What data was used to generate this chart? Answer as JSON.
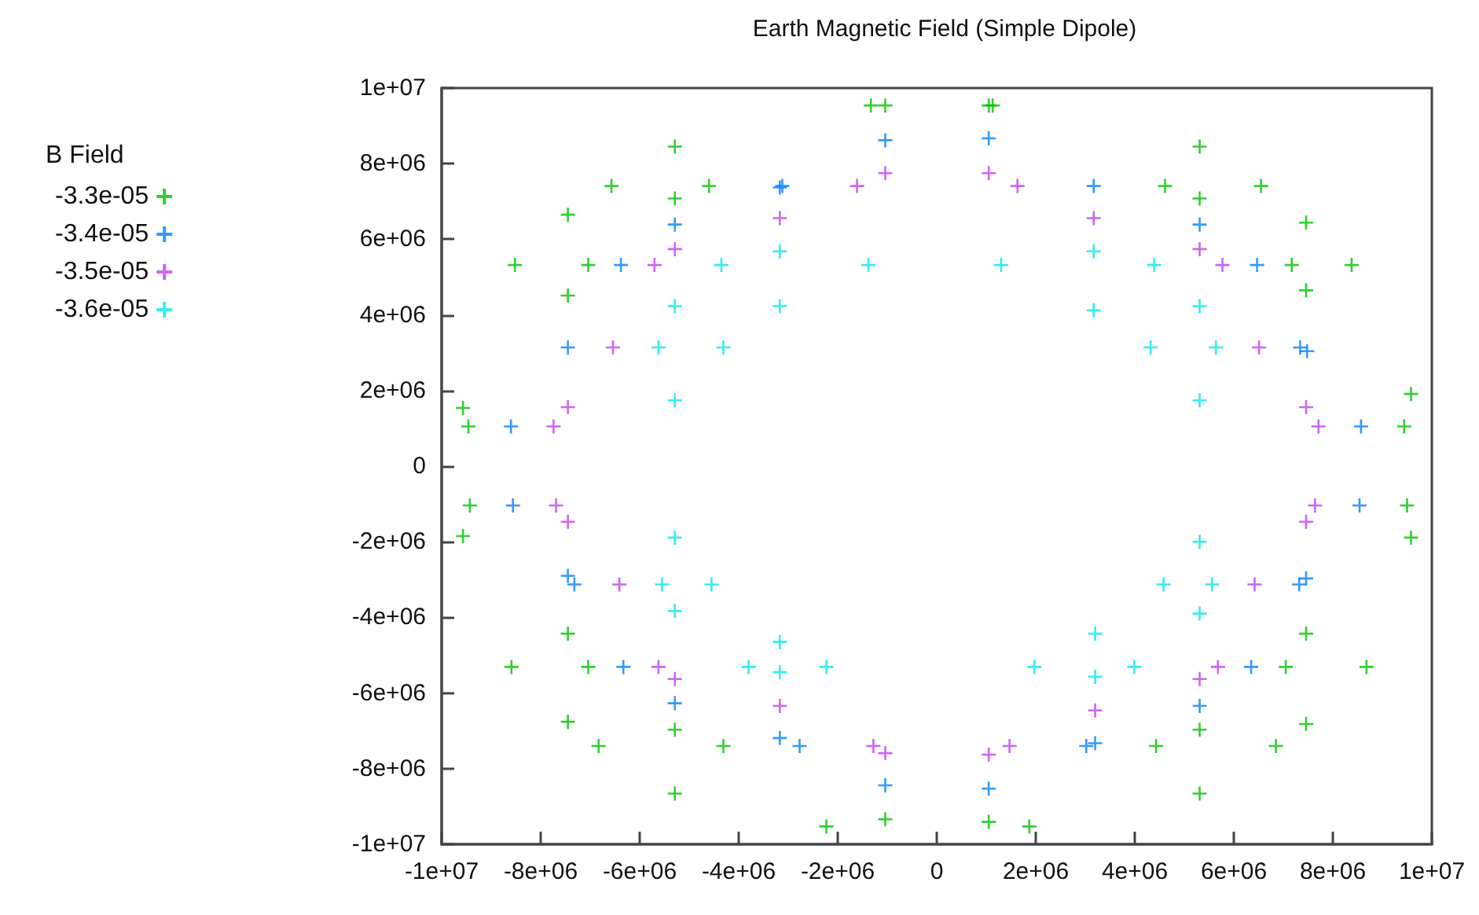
{
  "chart_data": {
    "type": "scatter",
    "title": "Earth Magnetic Field (Simple Dipole)",
    "legend_title": "B Field",
    "legend": "left",
    "marker": "cross",
    "xlim": [
      -10000000.0,
      10000000.0
    ],
    "ylim": [
      -10000000.0,
      10000000.0
    ],
    "xticks": [
      {
        "value": -10000000.0,
        "label": "-1e+07"
      },
      {
        "value": -8000000.0,
        "label": "-8e+06"
      },
      {
        "value": -6000000.0,
        "label": "-6e+06"
      },
      {
        "value": -4000000.0,
        "label": "-4e+06"
      },
      {
        "value": -2000000.0,
        "label": "-2e+06"
      },
      0,
      {
        "value": 2000000.0,
        "label": "2e+06"
      },
      {
        "value": 4000000.0,
        "label": "4e+06"
      },
      {
        "value": 6000000.0,
        "label": "6e+06"
      },
      {
        "value": 8000000.0,
        "label": "8e+06"
      },
      {
        "value": 10000000.0,
        "label": "1e+07"
      }
    ],
    "yticks": [
      {
        "value": -10000000.0,
        "label": "-1e+07"
      },
      {
        "value": -8000000.0,
        "label": "-8e+06"
      },
      {
        "value": -6000000.0,
        "label": "-6e+06"
      },
      {
        "value": -4000000.0,
        "label": "-4e+06"
      },
      {
        "value": -2000000.0,
        "label": "-2e+06"
      },
      0,
      {
        "value": 2000000.0,
        "label": "2e+06"
      },
      {
        "value": 4000000.0,
        "label": "4e+06"
      },
      {
        "value": 6000000.0,
        "label": "6e+06"
      },
      {
        "value": 8000000.0,
        "label": "8e+06"
      },
      {
        "value": 10000000.0,
        "label": "1e+07"
      }
    ],
    "series": [
      {
        "name": "-3.3e-05",
        "color": "#00c000",
        "x": [
          -1330000.0,
          -1040000.0,
          -5290000.0,
          -6570000.0,
          -4600000.0,
          -5290000.0,
          -7450000.0,
          -8520000.0,
          -7040000.0,
          -7450000.0,
          -9570000.0,
          -9460000.0,
          1050000.0,
          1130000.0,
          5310000.0,
          4610000.0,
          6550000.0,
          5310000.0,
          7460000.0,
          7170000.0,
          8380000.0,
          7460000.0,
          9580000.0,
          9440000.0,
          -9430000.0,
          -9570000.0,
          -7450000.0,
          -8590000.0,
          -7040000.0,
          -7450000.0,
          -6830000.0,
          -5290000.0,
          -4310000.0,
          -5290000.0,
          -2230000.0,
          -1040000.0,
          1050000.0,
          1870000.0,
          4430000.0,
          5310000.0,
          6850000.0,
          7460000.0,
          5310000.0,
          7050000.0,
          7460000.0,
          8680000.0,
          9500000.0,
          9580000.0
        ],
        "values": [
          9540000.0,
          9540000.0,
          8450000.0,
          7410000.0,
          7410000.0,
          7080000.0,
          6650000.0,
          5320000.0,
          5320000.0,
          4510000.0,
          1540000.0,
          1050000.0,
          9540000.0,
          9540000.0,
          8450000.0,
          7410000.0,
          7410000.0,
          7080000.0,
          6440000.0,
          5320000.0,
          5320000.0,
          4650000.0,
          1910000.0,
          1050000.0,
          -1040000.0,
          -1850000.0,
          -4430000.0,
          -5310000.0,
          -5310000.0,
          -6760000.0,
          -7400000.0,
          -6970000.0,
          -7400000.0,
          -8660000.0,
          -9530000.0,
          -9340000.0,
          -9410000.0,
          -9530000.0,
          -7400000.0,
          -6970000.0,
          -7400000.0,
          -6820000.0,
          -8660000.0,
          -5310000.0,
          -4430000.0,
          -5310000.0,
          -1040000.0,
          -1890000.0
        ]
      },
      {
        "name": "-3.4e-05",
        "color": "#0080ff",
        "x": [
          -1040000.0,
          -3170000.0,
          -3120000.0,
          -5290000.0,
          -6380000.0,
          -7450000.0,
          -8600000.0,
          1050000.0,
          3170000.0,
          5310000.0,
          6470000.0,
          7340000.0,
          7480000.0,
          8570000.0,
          -8560000.0,
          -7450000.0,
          -7320000.0,
          -6330000.0,
          -5290000.0,
          -3170000.0,
          -2770000.0,
          -1040000.0,
          1050000.0,
          3020000.0,
          3200000.0,
          5310000.0,
          6350000.0,
          7320000.0,
          7460000.0,
          8540000.0
        ],
        "values": [
          8620000.0,
          7370000.0,
          7410000.0,
          6390000.0,
          5320000.0,
          3140000.0,
          1050000.0,
          8670000.0,
          7410000.0,
          6390000.0,
          5320000.0,
          3140000.0,
          3040000.0,
          1050000.0,
          -1040000.0,
          -2900000.0,
          -3130000.0,
          -5310000.0,
          -6270000.0,
          -7190000.0,
          -7400000.0,
          -8440000.0,
          -8530000.0,
          -7400000.0,
          -7330000.0,
          -6340000.0,
          -5310000.0,
          -3130000.0,
          -2970000.0,
          -1040000.0
        ]
      },
      {
        "name": "-3.5e-05",
        "color": "#c040f0",
        "x": [
          -1040000.0,
          -1610000.0,
          -3170000.0,
          -5290000.0,
          -5700000.0,
          -6540000.0,
          -7450000.0,
          -7740000.0,
          1050000.0,
          1630000.0,
          3170000.0,
          5310000.0,
          5770000.0,
          6510000.0,
          7460000.0,
          7710000.0,
          -7690000.0,
          -7450000.0,
          -6410000.0,
          -5620000.0,
          -5290000.0,
          -3170000.0,
          -1280000.0,
          -1040000.0,
          1050000.0,
          1470000.0,
          3200000.0,
          5310000.0,
          5680000.0,
          6420000.0,
          7460000.0,
          7640000.0
        ],
        "values": [
          7750000.0,
          7410000.0,
          6560000.0,
          5740000.0,
          5320000.0,
          3140000.0,
          1560000.0,
          1050000.0,
          7750000.0,
          7410000.0,
          6560000.0,
          5740000.0,
          5320000.0,
          3140000.0,
          1560000.0,
          1050000.0,
          -1040000.0,
          -1470000.0,
          -3130000.0,
          -5310000.0,
          -5630000.0,
          -6340000.0,
          -7400000.0,
          -7590000.0,
          -7630000.0,
          -7400000.0,
          -6460000.0,
          -5630000.0,
          -5310000.0,
          -3130000.0,
          -1470000.0,
          -1040000.0
        ]
      },
      {
        "name": "-3.6e-05",
        "color": "#00e8f0",
        "x": [
          -3170000.0,
          -4350000.0,
          -1380000.0,
          -5290000.0,
          -3170000.0,
          -5620000.0,
          -4310000.0,
          -5290000.0,
          1300000.0,
          3170000.0,
          4390000.0,
          3170000.0,
          5310000.0,
          4320000.0,
          5640000.0,
          5310000.0,
          -5290000.0,
          -5550000.0,
          -4550000.0,
          -5290000.0,
          -3800000.0,
          -3170000.0,
          -3170000.0,
          -2230000.0,
          1970000.0,
          3200000.0,
          3200000.0,
          3990000.0,
          5310000.0,
          4580000.0,
          5560000.0,
          5310000.0
        ],
        "values": [
          5680000.0,
          5320000.0,
          5320000.0,
          4230000.0,
          4230000.0,
          3140000.0,
          3140000.0,
          1740000.0,
          5320000.0,
          5680000.0,
          5320000.0,
          4120000.0,
          4230000.0,
          3140000.0,
          3140000.0,
          1740000.0,
          -1890000.0,
          -3130000.0,
          -3130000.0,
          -3830000.0,
          -5310000.0,
          -4650000.0,
          -5450000.0,
          -5310000.0,
          -5310000.0,
          -5570000.0,
          -4430000.0,
          -5310000.0,
          -3900000.0,
          -3130000.0,
          -3130000.0,
          -2000000.0
        ]
      }
    ]
  }
}
